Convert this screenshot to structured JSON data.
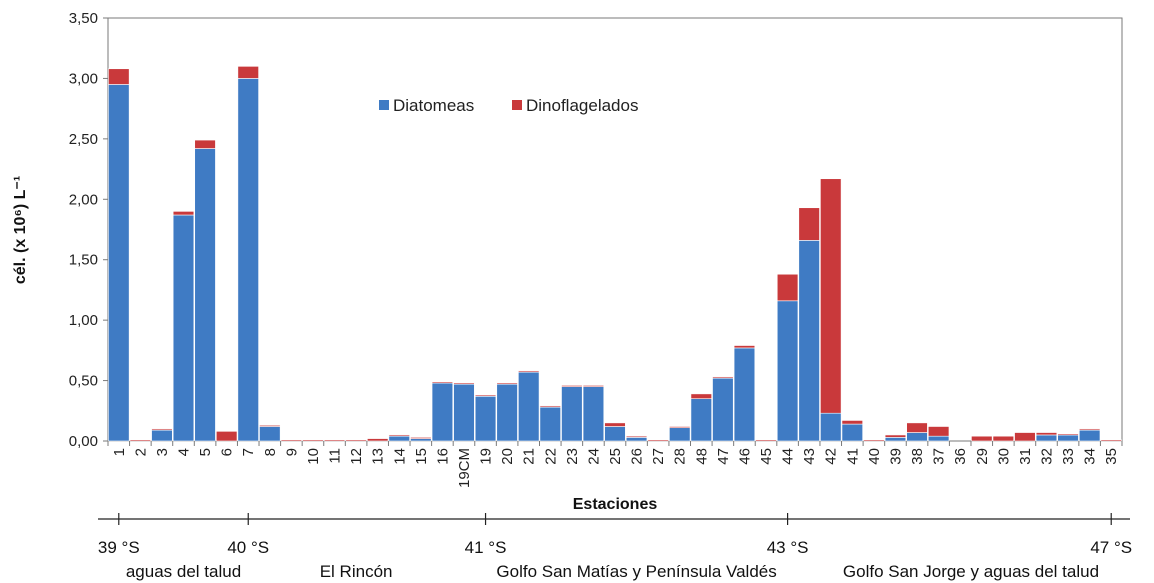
{
  "chart_data": {
    "type": "bar",
    "stacked": true,
    "ylabel": "cél. (x 10⁶) L⁻¹",
    "xlabel": "Estaciones",
    "ylim": [
      0,
      3.5
    ],
    "yticks": [
      "0,00",
      "0,50",
      "1,00",
      "1,50",
      "2,00",
      "2,50",
      "3,00",
      "3,50"
    ],
    "grid": false,
    "legend": "top-center",
    "categories": [
      "1",
      "2",
      "3",
      "4",
      "5",
      "6",
      "7",
      "8",
      "9",
      "10",
      "11",
      "12",
      "13",
      "14",
      "15",
      "16",
      "19CM",
      "19",
      "20",
      "21",
      "22",
      "23",
      "24",
      "25",
      "26",
      "27",
      "28",
      "48",
      "47",
      "46",
      "45",
      "44",
      "43",
      "42",
      "41",
      "40",
      "39",
      "38",
      "37",
      "36",
      "29",
      "30",
      "31",
      "32",
      "33",
      "34",
      "35"
    ],
    "series": [
      {
        "name": "Diatomeas",
        "color": "#3f7bc4",
        "values": [
          2.95,
          0.0,
          0.09,
          1.87,
          2.42,
          0.0,
          3.0,
          0.12,
          0.0,
          0.0,
          0.0,
          0.0,
          0.0,
          0.04,
          0.02,
          0.48,
          0.47,
          0.37,
          0.47,
          0.57,
          0.28,
          0.45,
          0.45,
          0.12,
          0.03,
          0.0,
          0.11,
          0.35,
          0.52,
          0.77,
          0.0,
          1.16,
          1.66,
          0.23,
          0.14,
          0.0,
          0.03,
          0.07,
          0.04,
          0.0,
          0.0,
          0.0,
          0.0,
          0.05,
          0.05,
          0.09,
          0.0
        ]
      },
      {
        "name": "Dinoflagelados",
        "color": "#c9393b",
        "values": [
          0.13,
          0.01,
          0.01,
          0.03,
          0.07,
          0.08,
          0.1,
          0.01,
          0.01,
          0.01,
          0.01,
          0.01,
          0.02,
          0.01,
          0.01,
          0.01,
          0.01,
          0.01,
          0.01,
          0.01,
          0.01,
          0.01,
          0.01,
          0.03,
          0.01,
          0.01,
          0.01,
          0.04,
          0.01,
          0.02,
          0.01,
          0.22,
          0.27,
          1.94,
          0.03,
          0.01,
          0.02,
          0.08,
          0.08,
          0.0,
          0.04,
          0.04,
          0.07,
          0.02,
          0.01,
          0.01,
          0.01
        ]
      }
    ]
  },
  "latitude_axis": {
    "ticks": [
      {
        "label": "39 °S",
        "index": 0
      },
      {
        "label": "40 °S",
        "index": 6
      },
      {
        "label": "41 °S",
        "index": 17
      },
      {
        "label": "43 °S",
        "index": 31
      },
      {
        "label": "47 °S",
        "index": 46
      }
    ],
    "regions": [
      {
        "label": "aguas del talud",
        "center": 3.0
      },
      {
        "label": "El Rincón",
        "center": 11.0
      },
      {
        "label": "Golfo San Matías y Península Valdés",
        "center": 24.0
      },
      {
        "label": "Golfo San Jorge y aguas del talud",
        "center": 39.5
      }
    ]
  }
}
